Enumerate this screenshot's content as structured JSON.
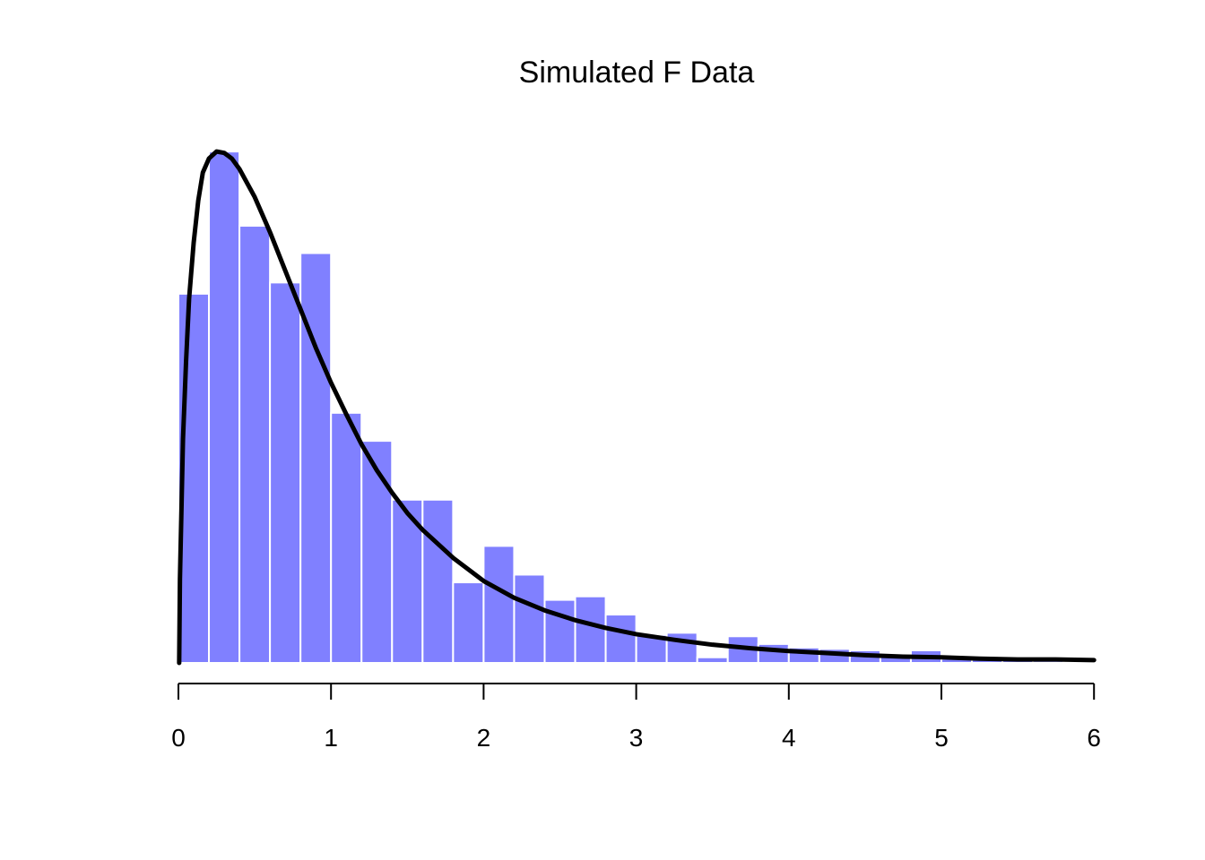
{
  "chart_data": {
    "type": "bar",
    "title": "Simulated F Data",
    "xlabel": "",
    "ylabel": "",
    "xlim": [
      0,
      6.2
    ],
    "ylim": [
      0,
      0.73
    ],
    "grid": false,
    "x_ticks": [
      0,
      1,
      2,
      3,
      4,
      5,
      6
    ],
    "y_axis_shown": false,
    "bin_width": 0.2,
    "bins": [
      {
        "start": 0.0,
        "end": 0.2,
        "density": 0.527
      },
      {
        "start": 0.2,
        "end": 0.4,
        "density": 0.73
      },
      {
        "start": 0.4,
        "end": 0.6,
        "density": 0.624
      },
      {
        "start": 0.6,
        "end": 0.8,
        "density": 0.543
      },
      {
        "start": 0.8,
        "end": 1.0,
        "density": 0.585
      },
      {
        "start": 1.0,
        "end": 1.2,
        "density": 0.357
      },
      {
        "start": 1.2,
        "end": 1.4,
        "density": 0.317
      },
      {
        "start": 1.4,
        "end": 1.6,
        "density": 0.233
      },
      {
        "start": 1.6,
        "end": 1.8,
        "density": 0.233
      },
      {
        "start": 1.8,
        "end": 2.0,
        "density": 0.115
      },
      {
        "start": 2.0,
        "end": 2.2,
        "density": 0.167
      },
      {
        "start": 2.2,
        "end": 2.4,
        "density": 0.126
      },
      {
        "start": 2.4,
        "end": 2.6,
        "density": 0.09
      },
      {
        "start": 2.6,
        "end": 2.8,
        "density": 0.095
      },
      {
        "start": 2.8,
        "end": 3.0,
        "density": 0.069
      },
      {
        "start": 3.0,
        "end": 3.2,
        "density": 0.04
      },
      {
        "start": 3.2,
        "end": 3.4,
        "density": 0.043
      },
      {
        "start": 3.4,
        "end": 3.6,
        "density": 0.008
      },
      {
        "start": 3.6,
        "end": 3.8,
        "density": 0.038
      },
      {
        "start": 3.8,
        "end": 4.0,
        "density": 0.027
      },
      {
        "start": 4.0,
        "end": 4.2,
        "density": 0.022
      },
      {
        "start": 4.2,
        "end": 4.4,
        "density": 0.02
      },
      {
        "start": 4.4,
        "end": 4.6,
        "density": 0.018
      },
      {
        "start": 4.6,
        "end": 4.8,
        "density": 0.01
      },
      {
        "start": 4.8,
        "end": 5.0,
        "density": 0.018
      },
      {
        "start": 5.0,
        "end": 5.2,
        "density": 0.006
      },
      {
        "start": 5.2,
        "end": 5.4,
        "density": 0.005
      },
      {
        "start": 5.4,
        "end": 5.6,
        "density": 0.004
      },
      {
        "start": 5.6,
        "end": 5.8,
        "density": 0.003
      },
      {
        "start": 5.8,
        "end": 6.0,
        "density": 0.002
      },
      {
        "start": 6.0,
        "end": 6.2,
        "density": 0.002
      }
    ],
    "curve": {
      "x": [
        0.005,
        0.01,
        0.02,
        0.03,
        0.05,
        0.07,
        0.1,
        0.13,
        0.16,
        0.2,
        0.25,
        0.3,
        0.35,
        0.4,
        0.5,
        0.6,
        0.7,
        0.8,
        0.9,
        1.0,
        1.1,
        1.2,
        1.3,
        1.4,
        1.5,
        1.6,
        1.8,
        2.0,
        2.2,
        2.4,
        2.6,
        2.8,
        3.0,
        3.25,
        3.5,
        3.75,
        4.0,
        4.25,
        4.5,
        4.75,
        5.0,
        5.25,
        5.5,
        5.75,
        6.0
      ],
      "y": [
        0.0,
        0.12,
        0.22,
        0.32,
        0.43,
        0.52,
        0.6,
        0.66,
        0.7,
        0.72,
        0.73,
        0.728,
        0.72,
        0.705,
        0.665,
        0.615,
        0.56,
        0.505,
        0.45,
        0.4,
        0.355,
        0.312,
        0.275,
        0.243,
        0.214,
        0.19,
        0.15,
        0.117,
        0.093,
        0.075,
        0.061,
        0.05,
        0.041,
        0.033,
        0.026,
        0.021,
        0.017,
        0.014,
        0.011,
        0.009,
        0.008,
        0.006,
        0.005,
        0.005,
        0.004
      ]
    },
    "colors": {
      "bar_fill": "#8080ff",
      "bar_border": "#ffffff",
      "curve": "#000000",
      "axis": "#000000"
    }
  }
}
